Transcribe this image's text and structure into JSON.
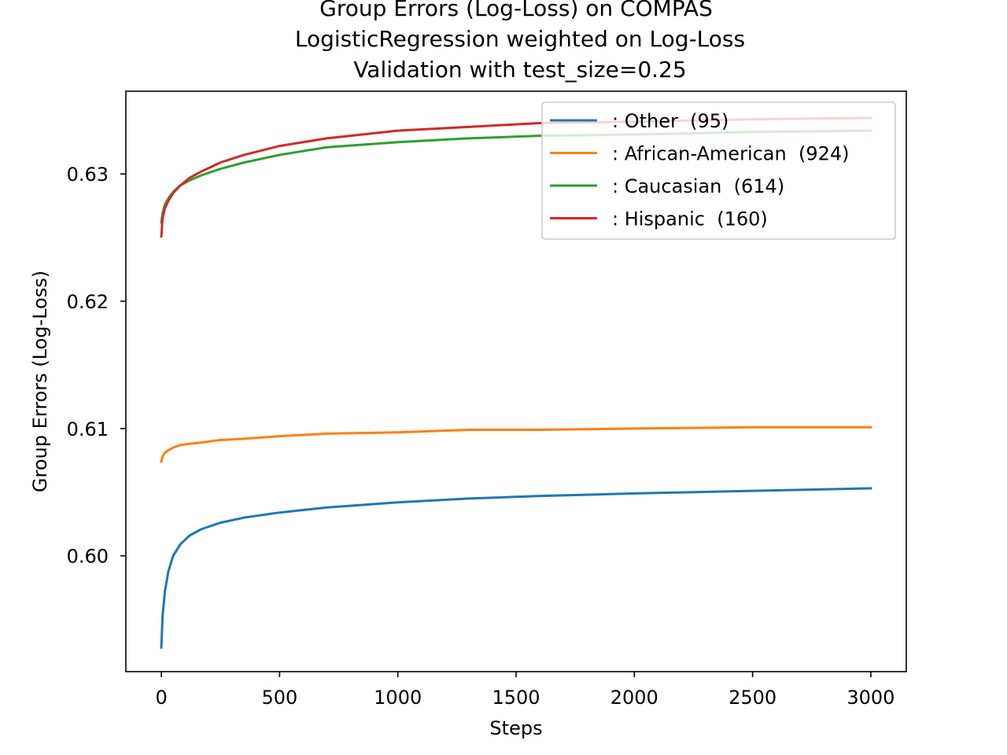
{
  "chart_data": {
    "type": "line",
    "title": [
      "Group Errors (Log-Loss) on COMPAS",
      "LogisticRegression weighted on Log-Loss",
      "Validation with test_size=0.25"
    ],
    "xlabel": "Steps",
    "ylabel": "Group Errors (Log-Loss)",
    "xlim": [
      -150,
      3150
    ],
    "ylim": [
      0.5909,
      0.6365
    ],
    "xticks": [
      0,
      500,
      1000,
      1500,
      2000,
      2500,
      3000
    ],
    "xtick_labels": [
      "0",
      "500",
      "1000",
      "1500",
      "2000",
      "2500",
      "3000"
    ],
    "yticks": [
      0.6,
      0.61,
      0.62,
      0.63
    ],
    "ytick_labels": [
      "0.60",
      "0.61",
      "0.62",
      "0.63"
    ],
    "grid": false,
    "legend_position": "top-right",
    "series": [
      {
        "name": ": Other  (95)",
        "color": "#1f77b4",
        "x": [
          0,
          5,
          15,
          30,
          50,
          80,
          120,
          170,
          250,
          350,
          500,
          700,
          1000,
          1300,
          1600,
          2000,
          2500,
          3000
        ],
        "y": [
          0.5928,
          0.5952,
          0.5972,
          0.5988,
          0.6,
          0.6009,
          0.6016,
          0.6021,
          0.6026,
          0.603,
          0.6034,
          0.6038,
          0.6042,
          0.6045,
          0.6047,
          0.6049,
          0.6051,
          0.6053
        ]
      },
      {
        "name": ": African-American  (924)",
        "color": "#ff7f0e",
        "x": [
          0,
          5,
          15,
          30,
          50,
          80,
          120,
          170,
          250,
          350,
          500,
          700,
          1000,
          1300,
          1600,
          2000,
          2500,
          3000
        ],
        "y": [
          0.6074,
          0.6078,
          0.6081,
          0.6083,
          0.6085,
          0.6087,
          0.6088,
          0.6089,
          0.6091,
          0.6092,
          0.6094,
          0.6096,
          0.6097,
          0.6099,
          0.6099,
          0.61,
          0.6101,
          0.6101
        ]
      },
      {
        "name": ": Caucasian  (614)",
        "color": "#2ca02c",
        "x": [
          0,
          5,
          15,
          30,
          50,
          80,
          120,
          170,
          250,
          350,
          500,
          700,
          1000,
          1300,
          1600,
          2000,
          2500,
          3000
        ],
        "y": [
          0.6262,
          0.6269,
          0.6276,
          0.6281,
          0.6286,
          0.6291,
          0.6295,
          0.6299,
          0.6304,
          0.6309,
          0.6315,
          0.6321,
          0.6325,
          0.6328,
          0.633,
          0.6331,
          0.6333,
          0.6334
        ]
      },
      {
        "name": ": Hispanic  (160)",
        "color": "#d62728",
        "x": [
          0,
          5,
          15,
          30,
          50,
          80,
          120,
          170,
          250,
          350,
          500,
          700,
          1000,
          1300,
          1600,
          2000,
          2500,
          3000
        ],
        "y": [
          0.6251,
          0.6265,
          0.6273,
          0.6279,
          0.6285,
          0.6291,
          0.6297,
          0.6302,
          0.6309,
          0.6315,
          0.6322,
          0.6328,
          0.6334,
          0.6337,
          0.634,
          0.6341,
          0.6343,
          0.6344
        ]
      }
    ]
  }
}
